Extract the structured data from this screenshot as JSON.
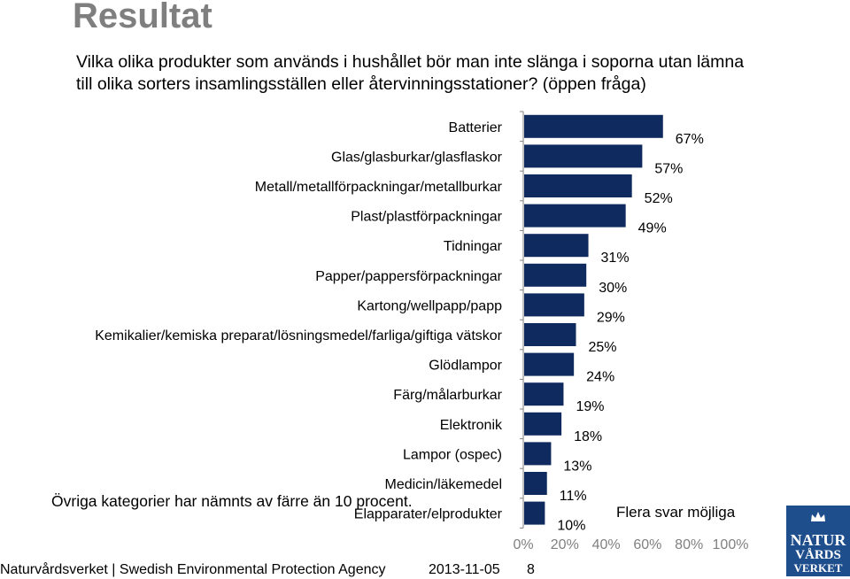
{
  "page": {
    "title": "Resultat",
    "question": "Vilka olika produkter som används i hushållet bör man inte slänga i soporna utan lämna till olika sorters insamlingsställen eller återvinningsstationer? (öppen fråga)",
    "note": "Övriga kategorier har nämnts av färre än 10 procent.",
    "flera_svar": "Flera svar möjliga",
    "footer": {
      "org": "Naturvårdsverket",
      "separator": "|",
      "org_en": "Swedish Environmental Protection Agency",
      "date": "2013-11-05",
      "page_number": "8"
    },
    "logo": {
      "line1": "NATUR",
      "line2": "VÅRDS",
      "line3": "VERKET"
    }
  },
  "chart_data": {
    "type": "bar",
    "orientation": "horizontal",
    "categories": [
      "Batterier",
      "Glas/glasburkar/glasflaskor",
      "Metall/metallförpackningar/metallburkar",
      "Plast/plastförpackningar",
      "Tidningar",
      "Papper/pappersförpackningar",
      "Kartong/wellpapp/papp",
      "Kemikalier/kemiska preparat/lösningsmedel/farliga/giftiga vätskor",
      "Glödlampor",
      "Färg/målarburkar",
      "Elektronik",
      "Lampor (ospec)",
      "Medicin/läkemedel",
      "Elapparater/elprodukter"
    ],
    "values": [
      67,
      57,
      52,
      49,
      31,
      30,
      29,
      25,
      24,
      19,
      18,
      13,
      11,
      10
    ],
    "value_labels": [
      "67%",
      "57%",
      "52%",
      "49%",
      "31%",
      "30%",
      "29%",
      "25%",
      "24%",
      "19%",
      "18%",
      "13%",
      "11%",
      "10%"
    ],
    "xlim": [
      0,
      100
    ],
    "x_ticks": [
      "0%",
      "20%",
      "40%",
      "60%",
      "80%",
      "100%"
    ],
    "bar_color": "#0f2a5e",
    "grid": false
  }
}
